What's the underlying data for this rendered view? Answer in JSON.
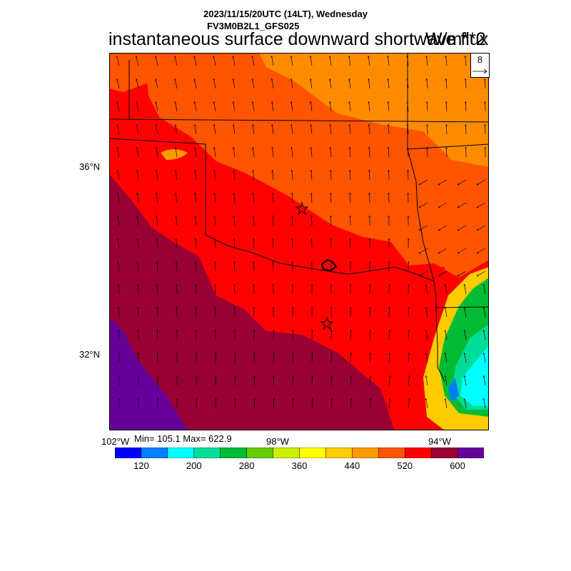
{
  "header": {
    "datetime_line": "2023/11/15/20UTC (14LT), Wednesday",
    "model_line": "FV3M0B2L1_GFS025",
    "variable_title": "instantaneous surface downward shortwave flux",
    "units": "W/m**2"
  },
  "map": {
    "lat_labels": [
      "36°N",
      "32°N"
    ],
    "lon_labels": [
      "102°W",
      "98°W",
      "94°W"
    ],
    "markers": [
      "star-oklahoma-city",
      "star-dallas"
    ],
    "colors": {
      "dominant_field": "#ff0000",
      "northeast_field": "#ff8c00",
      "southwest_field": "#990033"
    },
    "wind_vectors": {
      "reference_value": "8",
      "direction": "southerly to southwesterly"
    }
  },
  "stats": {
    "min_max_text": "Min= 105.1 Max= 622.9",
    "min": 105.1,
    "max": 622.9
  },
  "colorbar": {
    "colors": [
      "#0000ff",
      "#0080ff",
      "#00ffff",
      "#00dd99",
      "#00bb33",
      "#66cc00",
      "#ccee00",
      "#ffff00",
      "#ffcc00",
      "#ff9900",
      "#ff5500",
      "#ff0000",
      "#990033",
      "#660099"
    ],
    "labels": [
      "120",
      "200",
      "280",
      "360",
      "440",
      "520",
      "600"
    ]
  }
}
